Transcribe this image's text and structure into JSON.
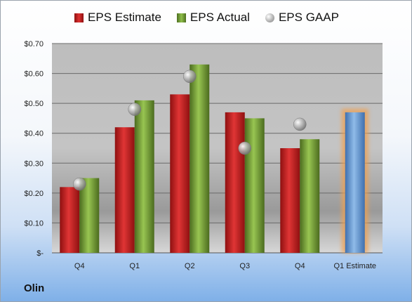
{
  "company": "Olin",
  "colors": {
    "estimate": "#cc2222",
    "actual": "#77a03a",
    "gaap": "#b3b3b3",
    "projected_estimate": "#6f9fd6",
    "highlight_glow": "#f0a050"
  },
  "chart_data": {
    "type": "bar",
    "categories": [
      "Q4",
      "Q1",
      "Q2",
      "Q3",
      "Q4",
      "Q1 Estimate"
    ],
    "series": [
      {
        "name": "EPS Estimate",
        "values": [
          0.22,
          0.42,
          0.53,
          0.47,
          0.35,
          null
        ]
      },
      {
        "name": "EPS Actual",
        "values": [
          0.25,
          0.51,
          0.63,
          0.45,
          0.38,
          null
        ]
      },
      {
        "name": "EPS GAAP",
        "values": [
          0.23,
          0.48,
          0.59,
          0.35,
          0.43,
          null
        ]
      }
    ],
    "projected_estimate": {
      "category": "Q1 Estimate",
      "value": 0.47
    },
    "ylim": [
      0,
      0.7
    ],
    "yticks": [
      0,
      0.1,
      0.2,
      0.3,
      0.4,
      0.5,
      0.6,
      0.7
    ],
    "ytick_labels": [
      "$-",
      "$0.10",
      "$0.20",
      "$0.30",
      "$0.40",
      "$0.50",
      "$0.60",
      "$0.70"
    ],
    "legend_position": "top",
    "grid": true
  }
}
